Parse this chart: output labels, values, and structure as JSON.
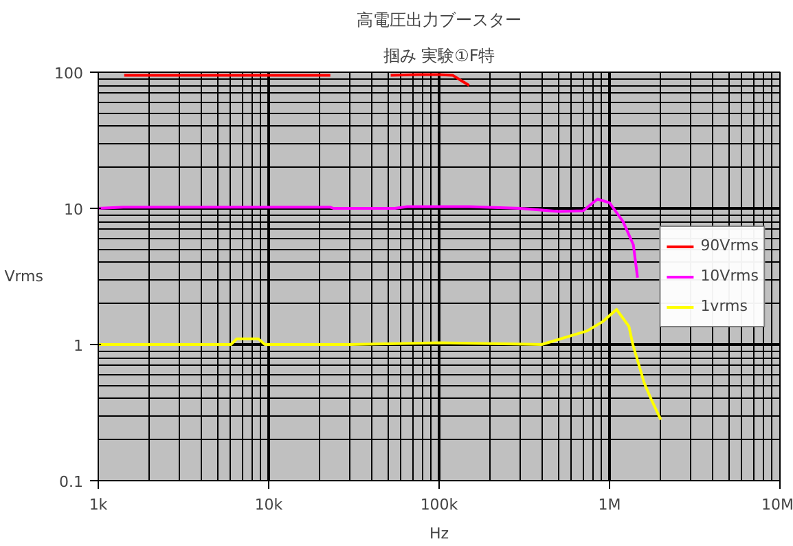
{
  "chart_data": {
    "type": "line",
    "title": "高電圧出力ブースター",
    "subtitle": "掴み 実験①F特",
    "xlabel": "Hz",
    "ylabel": "Vrms",
    "log": "xy",
    "grid": true,
    "legend": "right",
    "marker": "none",
    "line_style": "solid",
    "xlim": [
      1000,
      10000000
    ],
    "ylim": [
      0.1,
      100
    ],
    "xticks": [
      {
        "value": 1000,
        "label": "1k"
      },
      {
        "value": 10000,
        "label": "10k"
      },
      {
        "value": 100000,
        "label": "100k"
      },
      {
        "value": 1000000,
        "label": "1M"
      },
      {
        "value": 10000000,
        "label": "10M"
      }
    ],
    "yticks": [
      0.1,
      1,
      10,
      100
    ],
    "series": [
      {
        "name": "90Vrms",
        "color": "#ff0000",
        "x": [
          1420,
          23000,
          40000,
          52000,
          75000,
          100000,
          120000,
          150000
        ],
        "values": [
          95,
          95,
          null,
          95,
          96,
          96,
          95,
          80
        ]
      },
      {
        "name": "10Vrms",
        "color": "#ff00ff",
        "x": [
          1000,
          1400,
          23000,
          24000,
          55000,
          65000,
          150000,
          300000,
          500000,
          700000,
          850000,
          1000000,
          1200000,
          1380000,
          1460000
        ],
        "values": [
          10,
          10.2,
          10.2,
          10,
          10,
          10.3,
          10.3,
          10,
          9.5,
          9.6,
          11.7,
          11,
          8,
          5.4,
          3.1
        ]
      },
      {
        "name": "1vrms",
        "color": "#ffff00",
        "x": [
          1000,
          6000,
          6500,
          8700,
          9500,
          30000,
          100000,
          400000,
          740000,
          910000,
          1100000,
          1300000,
          1370000,
          1600000,
          1750000,
          2000000
        ],
        "values": [
          1.0,
          1.0,
          1.1,
          1.1,
          1.0,
          1.0,
          1.03,
          1.0,
          1.26,
          1.47,
          1.81,
          1.36,
          1.0,
          0.52,
          0.4,
          0.28
        ]
      }
    ]
  }
}
